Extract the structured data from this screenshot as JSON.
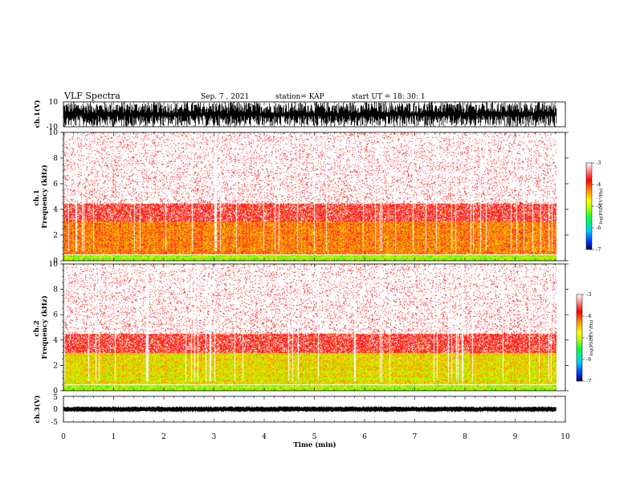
{
  "header": {
    "title": "VLF Spectra",
    "date": "Sep. 7 , 2021",
    "station": "station= KAP",
    "start": "start  UT =   18: 30: 1"
  },
  "chart_data": [
    {
      "type": "line",
      "name": "ch1-waveform",
      "ylabel": "ch.1(V)",
      "ylim": [
        -10,
        10
      ],
      "yticks": [
        "10",
        "-10"
      ],
      "xlim": [
        0,
        10
      ]
    },
    {
      "type": "heatmap",
      "name": "ch1-spectrogram",
      "ylabel": "ch.1\nFrequency  (kHz)",
      "ylim": [
        0,
        10
      ],
      "yticks": [
        "0",
        "2",
        "4",
        "6",
        "8",
        "10"
      ],
      "xlim": [
        0,
        10
      ],
      "data_end_min": 9.82,
      "colorbar": {
        "label": "log(PSD)(V²/Hz)",
        "range": [
          -7,
          -3
        ],
        "ticks": [
          "-3",
          "-4",
          "-5",
          "-6",
          "-7"
        ],
        "colors": [
          "#000066",
          "#0040ff",
          "#00d0ff",
          "#00ff40",
          "#b0ff00",
          "#ffff00",
          "#ff9000",
          "#ff0000",
          "#ffffff"
        ]
      }
    },
    {
      "type": "heatmap",
      "name": "ch2-spectrogram",
      "ylabel": "ch.2\nFrequency  (kHz)",
      "ylim": [
        0,
        10
      ],
      "yticks": [
        "0",
        "2",
        "4",
        "6",
        "8",
        "10"
      ],
      "xlim": [
        0,
        10
      ],
      "data_end_min": 9.82,
      "colorbar": {
        "label": "log(PSD)(V²/Hz)",
        "range": [
          -7,
          -3
        ],
        "ticks": [
          "-3",
          "-4",
          "-5",
          "-6",
          "-7"
        ],
        "colors": [
          "#000066",
          "#0040ff",
          "#00d0ff",
          "#00ff40",
          "#b0ff00",
          "#ffff00",
          "#ff9000",
          "#ff0000",
          "#ffffff"
        ]
      }
    },
    {
      "type": "line",
      "name": "ch3-waveform",
      "ylabel": "ch.3(V)",
      "ylim": [
        -5,
        5
      ],
      "yticks": [
        "5",
        "0",
        "-5"
      ],
      "xlim": [
        0,
        10
      ],
      "xlabel": "Time  (min)",
      "xticks": [
        "0",
        "1",
        "2",
        "3",
        "4",
        "5",
        "6",
        "7",
        "8",
        "9",
        "10"
      ]
    }
  ]
}
